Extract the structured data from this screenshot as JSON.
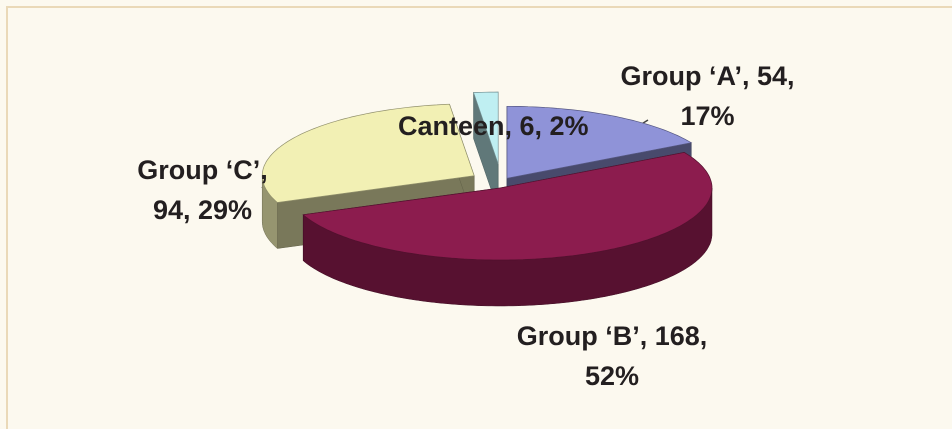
{
  "chart_data": {
    "type": "pie",
    "categories": [
      "Group ‘A’",
      "Group ‘B’",
      "Group ‘C’",
      "Canteen"
    ],
    "values": [
      54,
      168,
      94,
      6
    ],
    "value_labels": [
      "Group ‘A’, 54, 17%",
      "Group ‘B’, 168, 52%",
      "Group ‘C’, 94, 29%",
      "Canteen, 6, 2%"
    ],
    "colors": [
      "#8f93d8",
      "#8c1c4e",
      "#f2f0b4",
      "#bfeff2"
    ]
  }
}
